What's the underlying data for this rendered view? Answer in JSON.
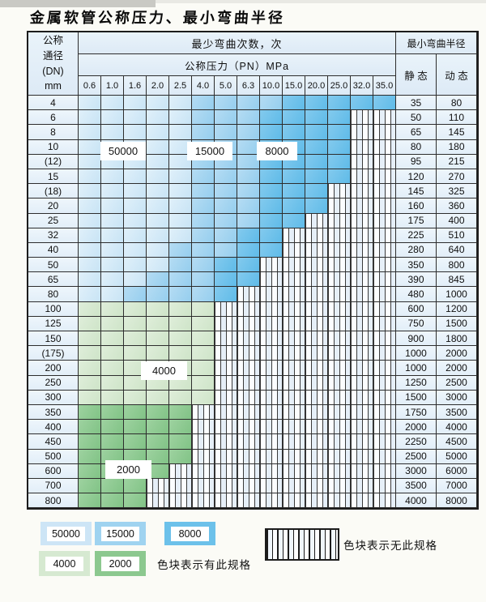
{
  "title": "金属软管公称压力、最小弯曲半径",
  "colors": {
    "cycles_50000": "#cde5f6",
    "cycles_15000": "#9fd3f0",
    "cycles_8000": "#6cc1ea",
    "cycles_4000": "#d6e9d1",
    "cycles_2000": "#8cc88f",
    "no_spec_hatch_bg": "#f0f6fc",
    "grid_line": "#2d2d2d"
  },
  "table": {
    "header": {
      "dn_lines": [
        "公称",
        "通径",
        "(DN)",
        "mm"
      ],
      "cycles_title": "最少弯曲次数，次",
      "pressure_title": "公称压力（PN）MPa",
      "pressures": [
        "0.6",
        "1.0",
        "1.6",
        "2.0",
        "2.5",
        "4.0",
        "5.0",
        "6.3",
        "10.0",
        "15.0",
        "20.0",
        "25.0",
        "32.0",
        "35.0"
      ],
      "radius_title": "最小弯曲半径",
      "static_label": "静 态",
      "dynamic_label": "动 态"
    },
    "cell_code_meaning": {
      "L": "bend cycles 50000",
      "M": "bend cycles 15000",
      "D": "bend cycles 8000",
      "G": "bend cycles 4000",
      "H": "bend cycles 2000",
      "X": "no such specification"
    },
    "rows": [
      {
        "dn": "4",
        "cells": "LLLLLMMMMDDDDD",
        "static": "35",
        "dynamic": "80"
      },
      {
        "dn": "6",
        "cells": "LLLLLMMMDDDDXX",
        "static": "50",
        "dynamic": "110"
      },
      {
        "dn": "8",
        "cells": "LLLLLMMMDDDDXX",
        "static": "65",
        "dynamic": "145"
      },
      {
        "dn": "10",
        "cells": "LLLLLMMMDDDDXX",
        "static": "80",
        "dynamic": "180"
      },
      {
        "dn": "(12)",
        "cells": "LLLLLMMMDDDDXX",
        "static": "95",
        "dynamic": "215"
      },
      {
        "dn": "15",
        "cells": "LLLLLMMMDDDDXX",
        "static": "120",
        "dynamic": "270"
      },
      {
        "dn": "(18)",
        "cells": "LLLLLMMMDDDXXX",
        "static": "145",
        "dynamic": "325"
      },
      {
        "dn": "20",
        "cells": "LLLLLMMMDDDXXX",
        "static": "160",
        "dynamic": "360"
      },
      {
        "dn": "25",
        "cells": "LLLLLMMMDDXXXX",
        "static": "175",
        "dynamic": "400"
      },
      {
        "dn": "32",
        "cells": "LLLLLMMDDXXXXX",
        "static": "225",
        "dynamic": "510"
      },
      {
        "dn": "40",
        "cells": "LLLLMMMDDXXXXX",
        "static": "280",
        "dynamic": "640"
      },
      {
        "dn": "50",
        "cells": "LLLLMMDDXXXXXX",
        "static": "350",
        "dynamic": "800"
      },
      {
        "dn": "65",
        "cells": "LLLMMMDDXXXXXX",
        "static": "390",
        "dynamic": "845"
      },
      {
        "dn": "80",
        "cells": "LLMMMMDXXXXXXX",
        "static": "480",
        "dynamic": "1000"
      },
      {
        "dn": "100",
        "cells": "GGGGGGXXXXXXXX",
        "static": "600",
        "dynamic": "1200"
      },
      {
        "dn": "125",
        "cells": "GGGGGGXXXXXXXX",
        "static": "750",
        "dynamic": "1500"
      },
      {
        "dn": "150",
        "cells": "GGGGGGXXXXXXXX",
        "static": "900",
        "dynamic": "1800"
      },
      {
        "dn": "(175)",
        "cells": "GGGGGGXXXXXXXX",
        "static": "1000",
        "dynamic": "2000"
      },
      {
        "dn": "200",
        "cells": "GGGGGGXXXXXXXX",
        "static": "1000",
        "dynamic": "2000"
      },
      {
        "dn": "250",
        "cells": "GGGGGGXXXXXXXX",
        "static": "1250",
        "dynamic": "2500"
      },
      {
        "dn": "300",
        "cells": "GGGGGGXXXXXXXX",
        "static": "1500",
        "dynamic": "3000"
      },
      {
        "dn": "350",
        "cells": "HHHHHXXXXXXXXX",
        "static": "1750",
        "dynamic": "3500"
      },
      {
        "dn": "400",
        "cells": "HHHHHXXXXXXXXX",
        "static": "2000",
        "dynamic": "4000"
      },
      {
        "dn": "450",
        "cells": "HHHHHXXXXXXXXX",
        "static": "2250",
        "dynamic": "4500"
      },
      {
        "dn": "500",
        "cells": "HHHHHXXXXXXXXX",
        "static": "2500",
        "dynamic": "5000"
      },
      {
        "dn": "600",
        "cells": "HHHHXXXXXXXXXX",
        "static": "3000",
        "dynamic": "6000"
      },
      {
        "dn": "700",
        "cells": "HHHXXXXXXXXXXX",
        "static": "3500",
        "dynamic": "7000"
      },
      {
        "dn": "800",
        "cells": "HHHXXXXXXXXXXX",
        "static": "4000",
        "dynamic": "8000"
      }
    ],
    "overlay_labels": [
      {
        "text": "50000"
      },
      {
        "text": "15000"
      },
      {
        "text": "8000"
      },
      {
        "text": "4000"
      },
      {
        "text": "2000"
      }
    ]
  },
  "legend": {
    "row1": [
      "50000",
      "15000",
      "8000"
    ],
    "row2": [
      "4000",
      "2000"
    ],
    "has_note": "色块表示有此规格",
    "no_note": "色块表示无此规格"
  }
}
